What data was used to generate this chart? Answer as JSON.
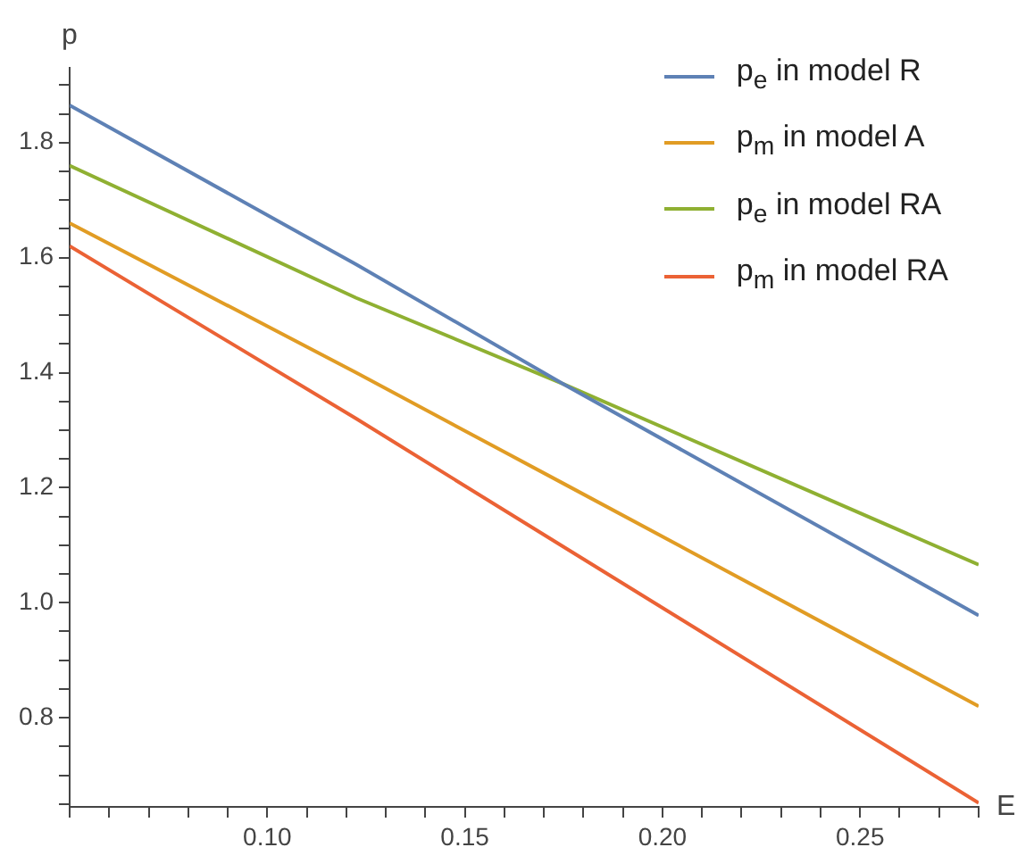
{
  "chart_data": {
    "type": "line",
    "xlabel": "E",
    "ylabel": "p",
    "x": [
      0.05,
      0.1225,
      0.175,
      0.28
    ],
    "series": [
      {
        "name": "p$_{e}$ in model R",
        "color": "#5e81b5",
        "values": [
          1.865,
          1.588,
          1.38,
          0.978
        ]
      },
      {
        "name": "p$_{m}$ in model A",
        "color": "#e19c24",
        "values": [
          1.66,
          1.4,
          1.207,
          0.82
        ]
      },
      {
        "name": "p$_{e}$ in model RA",
        "color": "#8fb032",
        "values": [
          1.76,
          1.53,
          1.38,
          1.066
        ]
      },
      {
        "name": "p$_{m}$ in model RA",
        "color": "#eb6235",
        "values": [
          1.62,
          1.32,
          1.097,
          0.652
        ]
      }
    ],
    "xlim": [
      0.05,
      0.28
    ],
    "ylim": [
      0.645,
      1.93
    ],
    "xticks": [
      {
        "value": 0.05,
        "label": null
      },
      {
        "value": 0.06,
        "label": null
      },
      {
        "value": 0.07,
        "label": null
      },
      {
        "value": 0.08,
        "label": null
      },
      {
        "value": 0.09,
        "label": null
      },
      {
        "value": 0.1,
        "label": "0.10"
      },
      {
        "value": 0.11,
        "label": null
      },
      {
        "value": 0.12,
        "label": null
      },
      {
        "value": 0.13,
        "label": null
      },
      {
        "value": 0.14,
        "label": null
      },
      {
        "value": 0.15,
        "label": "0.15"
      },
      {
        "value": 0.16,
        "label": null
      },
      {
        "value": 0.17,
        "label": null
      },
      {
        "value": 0.18,
        "label": null
      },
      {
        "value": 0.19,
        "label": null
      },
      {
        "value": 0.2,
        "label": "0.20"
      },
      {
        "value": 0.21,
        "label": null
      },
      {
        "value": 0.22,
        "label": null
      },
      {
        "value": 0.23,
        "label": null
      },
      {
        "value": 0.24,
        "label": null
      },
      {
        "value": 0.25,
        "label": "0.25"
      },
      {
        "value": 0.26,
        "label": null
      },
      {
        "value": 0.27,
        "label": null
      },
      {
        "value": 0.28,
        "label": null
      }
    ],
    "yticks": [
      {
        "value": 0.65,
        "label": null
      },
      {
        "value": 0.7,
        "label": null
      },
      {
        "value": 0.75,
        "label": null
      },
      0.8,
      {
        "value": 0.85,
        "label": null
      },
      {
        "value": 0.9,
        "label": null
      },
      {
        "value": 0.95,
        "label": null
      },
      {
        "value": 1,
        "label": "1.0"
      },
      {
        "value": 1.05,
        "label": null
      },
      {
        "value": 1.1,
        "label": null
      },
      {
        "value": 1.15,
        "label": null
      },
      1.2,
      {
        "value": 1.25,
        "label": null
      },
      {
        "value": 1.3,
        "label": null
      },
      {
        "value": 1.35,
        "label": null
      },
      1.4,
      {
        "value": 1.45,
        "label": null
      },
      {
        "value": 1.5,
        "label": null
      },
      {
        "value": 1.55,
        "label": null
      },
      1.6,
      {
        "value": 1.65,
        "label": null
      },
      {
        "value": 1.7,
        "label": null
      },
      {
        "value": 1.75,
        "label": null
      },
      1.8,
      {
        "value": 1.85,
        "label": null
      },
      {
        "value": 1.9,
        "label": null
      }
    ],
    "grid": false,
    "legend": "top right",
    "marker": "none"
  }
}
